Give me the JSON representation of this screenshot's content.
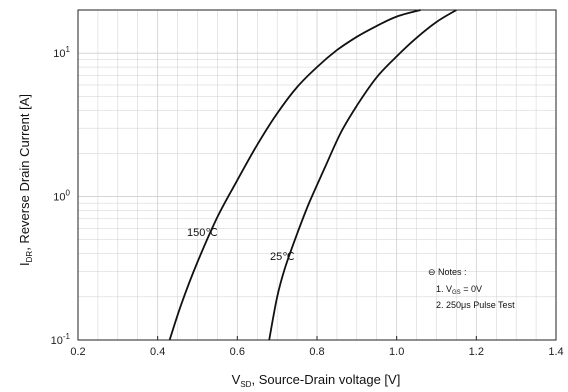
{
  "chart_data": {
    "type": "line",
    "xlabel_prefix": "V",
    "xlabel_sub": "SD",
    "xlabel_rest": ", Source-Drain voltage [V]",
    "ylabel_prefix": "I",
    "ylabel_sub": "DR",
    "ylabel_rest": ", Reverse Drain Current [A]",
    "xlim": [
      0.2,
      1.4
    ],
    "ylim": [
      0.1,
      20
    ],
    "yscale": "log",
    "xticks": [
      "0.2",
      "0.4",
      "0.6",
      "0.8",
      "1.0",
      "1.2",
      "1.4"
    ],
    "yticks": [
      {
        "base": "10",
        "exp": "-1",
        "value": 0.1
      },
      {
        "base": "10",
        "exp": "0",
        "value": 1
      },
      {
        "base": "10",
        "exp": "1",
        "value": 10
      }
    ],
    "grid": true,
    "series": [
      {
        "name": "150℃",
        "x": [
          0.43,
          0.46,
          0.5,
          0.55,
          0.6,
          0.65,
          0.7,
          0.75,
          0.8,
          0.85,
          0.9,
          0.95,
          1.0,
          1.06
        ],
        "y": [
          0.1,
          0.18,
          0.35,
          0.72,
          1.3,
          2.3,
          3.8,
          5.8,
          8.0,
          10.5,
          13.0,
          15.5,
          18.0,
          20.0
        ]
      },
      {
        "name": "25℃",
        "x": [
          0.68,
          0.7,
          0.72,
          0.75,
          0.78,
          0.82,
          0.86,
          0.9,
          0.95,
          1.0,
          1.05,
          1.1,
          1.15
        ],
        "y": [
          0.1,
          0.2,
          0.32,
          0.55,
          0.9,
          1.6,
          2.8,
          4.3,
          6.8,
          9.5,
          12.8,
          16.5,
          20.0
        ]
      }
    ],
    "annotations": [
      {
        "text": "150℃",
        "x": 0.52,
        "y": 0.52
      },
      {
        "text": "25℃",
        "x": 0.72,
        "y": 0.3
      }
    ],
    "notes": {
      "title": "Notes :",
      "line1_prefix": "1. V",
      "line1_sub": "GS",
      "line1_rest": " = 0V",
      "line2": "2. 250μs Pulse Test"
    }
  },
  "colors": {
    "line": "#111111",
    "axis": "#222222",
    "grid": "#cfcfcf"
  }
}
